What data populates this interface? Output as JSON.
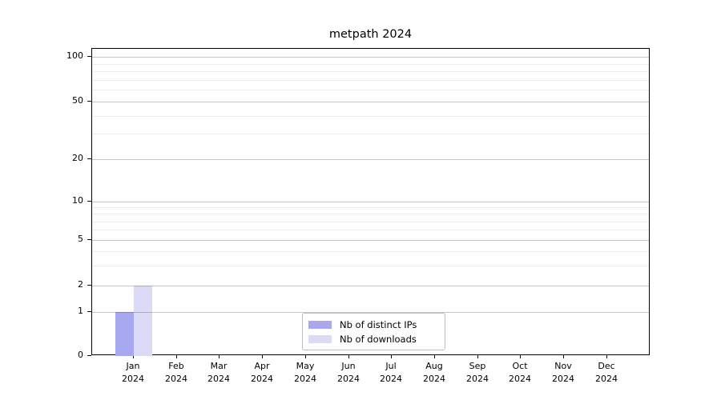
{
  "title": "metpath 2024",
  "chart_data": {
    "type": "bar",
    "title": "metpath 2024",
    "categories": [
      "Jan",
      "Feb",
      "Mar",
      "Apr",
      "May",
      "Jun",
      "Jul",
      "Aug",
      "Sep",
      "Oct",
      "Nov",
      "Dec"
    ],
    "category_year": "2024",
    "series": [
      {
        "name": "Nb of distinct IPs",
        "color": "#a8a8f0",
        "values": [
          1,
          0,
          0,
          0,
          0,
          0,
          0,
          0,
          0,
          0,
          0,
          0
        ]
      },
      {
        "name": "Nb of downloads",
        "color": "#dbdbf8",
        "values": [
          2,
          0,
          0,
          0,
          0,
          0,
          0,
          0,
          0,
          0,
          0,
          0
        ]
      }
    ],
    "y_axis": {
      "scale": "symlog",
      "ticks": [
        0,
        1,
        2,
        5,
        10,
        20,
        50,
        100
      ],
      "minor_ticks": [
        3,
        4,
        6,
        7,
        8,
        9,
        30,
        40,
        60,
        70,
        80,
        90
      ],
      "ylim": [
        0,
        115
      ]
    },
    "xlabel": "",
    "ylabel": "",
    "grid": "horizontal",
    "legend": {
      "position": "lower center",
      "entries": [
        "Nb of distinct IPs",
        "Nb of downloads"
      ]
    }
  }
}
